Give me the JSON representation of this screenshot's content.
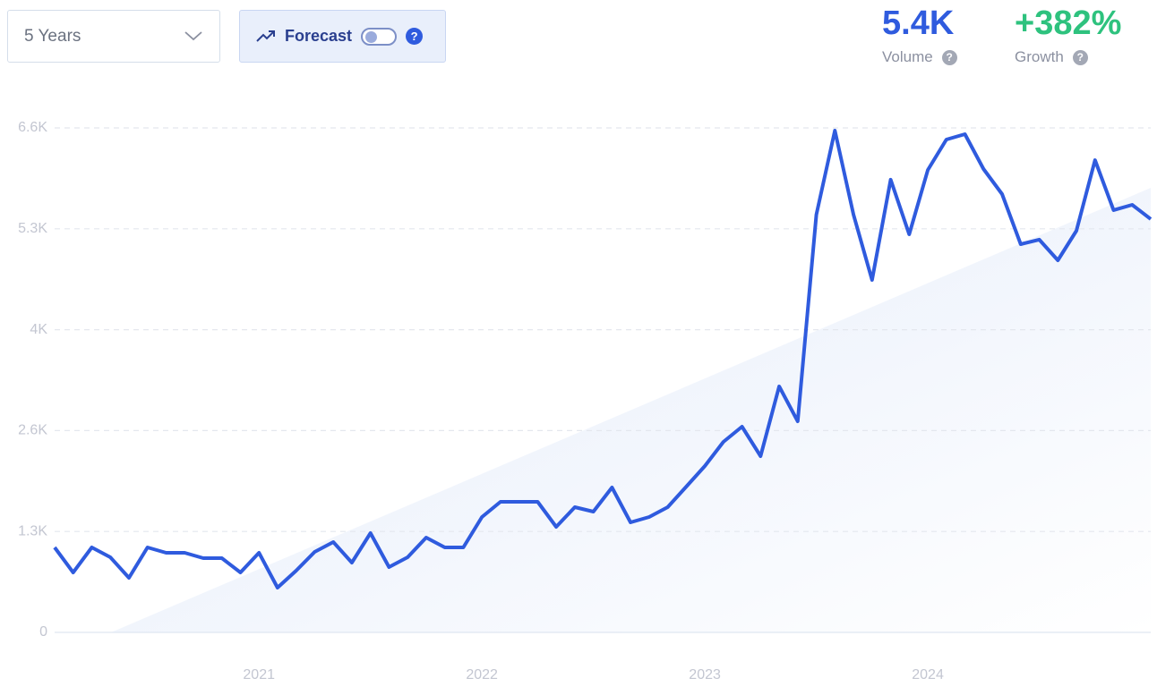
{
  "controls": {
    "range": "5 Years",
    "forecast": "Forecast"
  },
  "stats": {
    "volume": {
      "value": "5.4K",
      "label": "Volume"
    },
    "growth": {
      "value": "+382%",
      "label": "Growth"
    }
  },
  "chart_data": {
    "type": "line",
    "categories": [
      null,
      null,
      null,
      null,
      null,
      null,
      null,
      null,
      null,
      null,
      null,
      "2021",
      null,
      null,
      null,
      null,
      null,
      null,
      null,
      null,
      null,
      null,
      null,
      "2022",
      null,
      null,
      null,
      null,
      null,
      null,
      null,
      null,
      null,
      null,
      null,
      "2023",
      null,
      null,
      null,
      null,
      null,
      null,
      null,
      null,
      null,
      null,
      null,
      "2024",
      null,
      null,
      null,
      null,
      null,
      null,
      null,
      null,
      null,
      null,
      null,
      null
    ],
    "values": [
      1112,
      784,
      1112,
      983,
      714,
      1112,
      1042,
      1042,
      971,
      971,
      784,
      1042,
      585,
      807,
      1053,
      1182,
      913,
      1299,
      854,
      983,
      1240,
      1112,
      1112,
      1510,
      1709,
      1709,
      1709,
      1381,
      1638,
      1580,
      1896,
      1439,
      1510,
      1638,
      1907,
      2177,
      2493,
      2692,
      2305,
      3218,
      2762,
      5465,
      6565,
      5465,
      4611,
      5922,
      5208,
      6050,
      6448,
      6518,
      6062,
      5734,
      5079,
      5138,
      4868,
      5254,
      6179,
      5524,
      5594,
      5407
    ],
    "color": "#2f5bde",
    "ylim": [
      0,
      6600
    ],
    "yticks": [
      0,
      {
        "value": 1320,
        "label": "1.3K"
      },
      {
        "value": 2640,
        "label": "2.6K"
      },
      {
        "value": 3960,
        "label": "4K"
      },
      {
        "value": 5280,
        "label": "5.3K"
      },
      {
        "value": 6600,
        "label": "6.6K"
      }
    ],
    "grid": true
  }
}
